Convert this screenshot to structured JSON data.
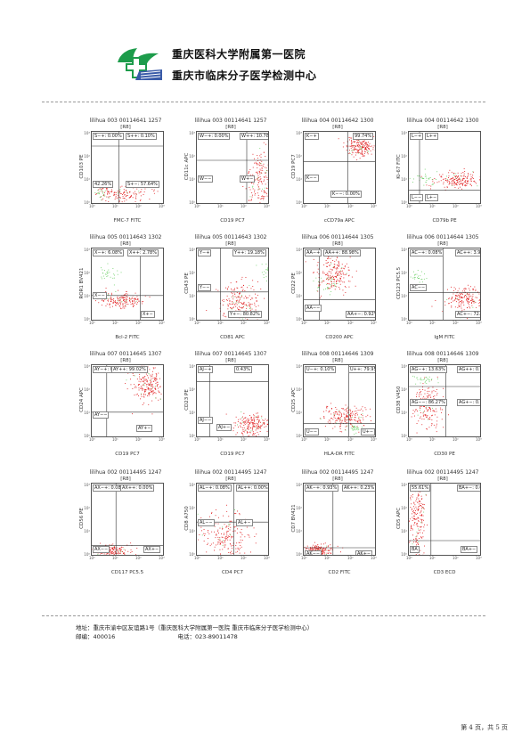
{
  "header": {
    "hospital_name": "重庆医科大学附属第一医院",
    "center_name": "重庆市临床分子医学检测中心"
  },
  "colors": {
    "events": "#e0191b",
    "secondary": "#6fd16a",
    "axis": "#555555",
    "logo_green": "#1d9c4b",
    "logo_blue": "#3a5ba8"
  },
  "plots": [
    {
      "title": "lilihua 003 00114641 1257",
      "gate": "[R8]",
      "xlabel": "FMC-7 FITC",
      "ylabel": "CD103 PE",
      "labels": [
        "S−+: 0.00%",
        "S++: 0.10%",
        "42.26%",
        "S+−: 57.64%"
      ]
    },
    {
      "title": "lilihua 003 00114641 1257",
      "gate": "[R8]",
      "xlabel": "CD19 PC7",
      "ylabel": "CD11c APC",
      "labels": [
        "W−+: 0.00%",
        "W++: 10.78%",
        "W−−",
        "W+−"
      ]
    },
    {
      "title": "lilihua 004 00114642 1300",
      "gate": "[R8]",
      "xlabel": "cCD79a APC",
      "ylabel": "CD19 PC7",
      "labels": [
        "K−+",
        "99.74%",
        "K−−",
        "K−−: 0.00%"
      ]
    },
    {
      "title": "lilihua 004 00114642 1300",
      "gate": "[R8]",
      "xlabel": "CD79b PE",
      "ylabel": "Ki-67 FITC",
      "labels": [
        "L−+",
        "L++",
        "L−−",
        "L+−"
      ]
    },
    {
      "title": "lilihua 005 00114643 1302",
      "gate": "[R8]",
      "xlabel": "Bcl-2 FITC",
      "ylabel": "ROR1 BV421",
      "labels": [
        "X−+: 6.08%",
        "X++: 2.78%",
        "X−−",
        "X+−"
      ]
    },
    {
      "title": "lilihua 005 00114643 1302",
      "gate": "[R8]",
      "xlabel": "CD81 APC",
      "ylabel": "CD43 PE",
      "labels": [
        "Y−+",
        "Y++: 19.18%",
        "Y−−",
        "Y+−: 80.82%"
      ]
    },
    {
      "title": "lilihua 006 00114644 1305",
      "gate": "[R8]",
      "xlabel": "CD200 APC",
      "ylabel": "CD22 PE",
      "labels": [
        "AA−+",
        "AA++: 88.98%",
        "AA−−",
        "AA+−: 0.92%"
      ]
    },
    {
      "title": "lilihua 006 00114644 1305",
      "gate": "[R8]",
      "xlabel": "IgM FITC",
      "ylabel": "CD123 PC5.5",
      "labels": [
        "AC−+: 0.08%",
        "AC++: 3.92%",
        "AC−−",
        "AC+−: 72.37%"
      ]
    },
    {
      "title": "lilihua 007 00114645 1307",
      "gate": "[R8]",
      "xlabel": "CD19 PC7",
      "ylabel": "CD24 APC",
      "labels": [
        "AY−+: 0.00%",
        "AY++: 99.02%",
        "AY−−",
        "AY+−"
      ]
    },
    {
      "title": "lilihua 007 00114645 1307",
      "gate": "[R8]",
      "xlabel": "CD19 PC7",
      "ylabel": "CD23 PE",
      "labels": [
        "AJ−+",
        "0.43%",
        "AJ−−",
        "AJ+−"
      ]
    },
    {
      "title": "lilihua 008 00114646 1309",
      "gate": "[R8]",
      "xlabel": "HLA-DR FITC",
      "ylabel": "CD25 APC",
      "labels": [
        "U−+: 0.10%",
        "U++: 79.95%",
        "U−−",
        "U+−"
      ]
    },
    {
      "title": "lilihua 008 00114646 1309",
      "gate": "[R8]",
      "xlabel": "CD30 PE",
      "ylabel": "CD38 V450",
      "labels": [
        "AG−+: 13.63%",
        "AG++: 0.00%",
        "AG−−: 86.27%",
        "AG+−: 0.10%"
      ]
    },
    {
      "title": "lilihua 002 00114495 1247",
      "gate": "[R8]",
      "xlabel": "CD117 PC5.5",
      "ylabel": "CD56 PE",
      "labels": [
        "AX−+: 0.08%",
        "AX++: 0.00%",
        "AX−−",
        "AX+−"
      ]
    },
    {
      "title": "lilihua 002 00114495 1247",
      "gate": "[R8]",
      "xlabel": "CD4 PC7",
      "ylabel": "CD8 A750",
      "labels": [
        "AL−+: 0.08%",
        "AL++: 0.00%",
        "AL−−",
        "AL+−"
      ]
    },
    {
      "title": "lilihua 002 00114495 1247",
      "gate": "[R8]",
      "xlabel": "CD2 FITC",
      "ylabel": "CD7 BV421",
      "labels": [
        "AK−+: 0.93%",
        "AK++: 0.23%",
        "AK−−",
        "AK+−"
      ]
    },
    {
      "title": "lilihua 002 00114495 1247",
      "gate": "[R8]",
      "xlabel": "CD3 ECD",
      "ylabel": "CD5 APC",
      "labels": [
        "55.61%",
        "BA+−: 0.62%",
        "BA",
        "BA+−"
      ]
    }
  ],
  "ticks": [
    "10⁰",
    "10¹",
    "10²",
    "10³"
  ],
  "footer": {
    "address": "地址：重庆市渝中区友谊路1号（重庆医科大学附属第一医院 重庆市临床分子医学检测中心）",
    "postcode": "邮编：400016",
    "phone": "电话：023-89011478"
  },
  "page_number": "第 4 页，共 5 页"
}
